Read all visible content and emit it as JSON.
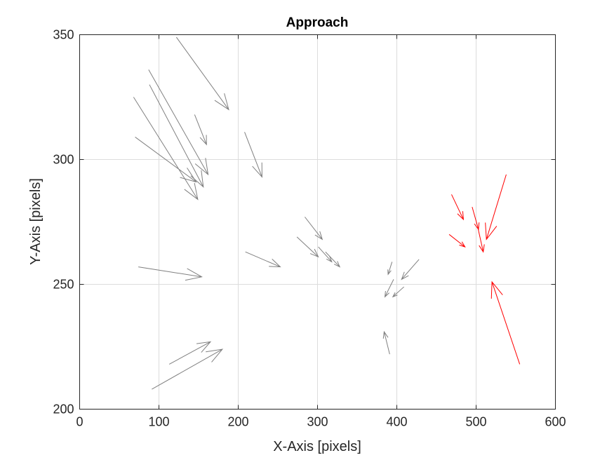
{
  "chart_data": {
    "type": "quiver",
    "title": "Approach",
    "xlabel": "X-Axis [pixels]",
    "ylabel": "Y-Axis [pixels]",
    "xlim": [
      0,
      600
    ],
    "ylim": [
      200,
      350
    ],
    "xticks": [
      "0",
      "100",
      "200",
      "300",
      "400",
      "500",
      "600"
    ],
    "yticks": [
      "200",
      "250",
      "300",
      "350"
    ],
    "grid": true,
    "series": [
      {
        "color": "#808080",
        "arrows": [
          [
            122,
            349,
            188,
            320
          ],
          [
            68,
            325,
            149,
            284
          ],
          [
            87,
            336,
            162,
            294
          ],
          [
            88,
            330,
            156,
            289
          ],
          [
            70,
            309,
            147,
            291
          ],
          [
            145,
            318,
            160,
            306
          ],
          [
            208,
            311,
            230,
            293
          ],
          [
            74,
            257,
            154,
            253
          ],
          [
            91,
            208,
            180,
            224
          ],
          [
            113,
            218,
            165,
            227
          ],
          [
            209,
            263,
            253,
            257
          ],
          [
            284,
            277,
            306,
            268
          ],
          [
            274,
            269,
            301,
            261
          ],
          [
            301,
            265,
            318,
            259
          ],
          [
            310,
            263,
            328,
            257
          ],
          [
            428,
            260,
            406,
            252
          ],
          [
            394,
            259,
            389,
            254
          ],
          [
            396,
            252,
            385,
            245
          ],
          [
            409,
            249,
            395,
            245
          ],
          [
            391,
            222,
            384,
            231
          ]
        ]
      },
      {
        "color": "#ff0000",
        "arrows": [
          [
            469,
            286,
            484,
            276
          ],
          [
            466,
            270,
            486,
            265
          ],
          [
            495,
            281,
            503,
            272
          ],
          [
            502,
            273,
            509,
            263
          ],
          [
            538,
            294,
            513,
            268
          ],
          [
            555,
            218,
            520,
            251
          ]
        ]
      }
    ]
  }
}
